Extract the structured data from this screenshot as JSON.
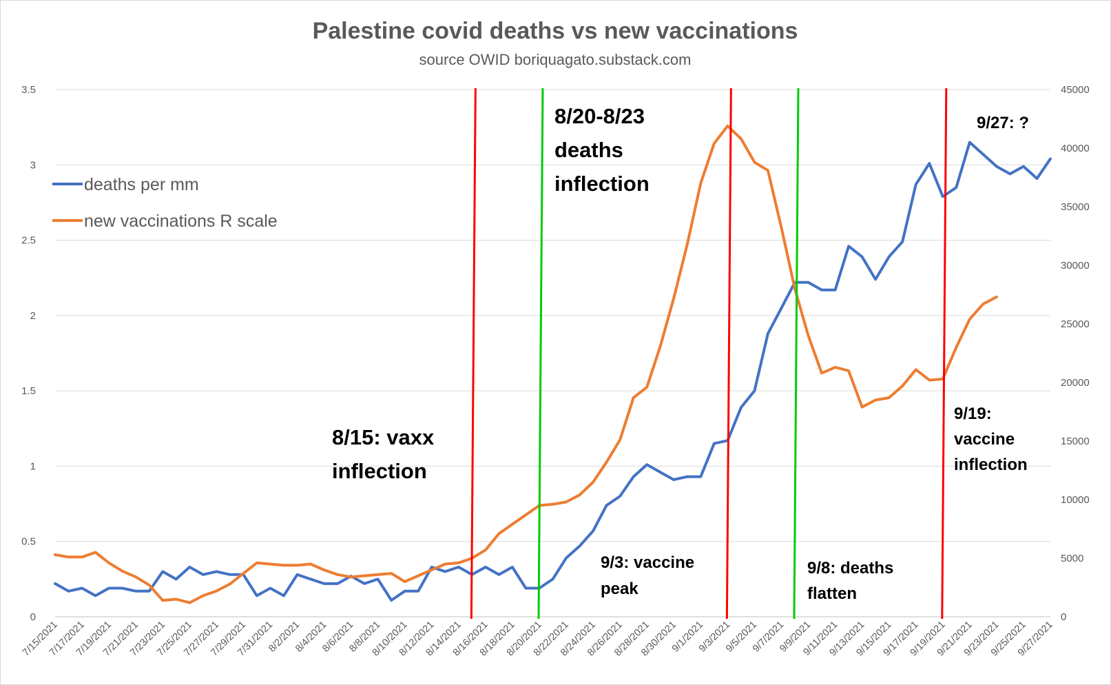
{
  "chart_data": {
    "type": "line",
    "title": "Palestine covid deaths vs new vaccinations",
    "subtitle": "source OWID boriquagato.substack.com",
    "x": [
      "7/15/2021",
      "7/16/2021",
      "7/17/2021",
      "7/18/2021",
      "7/19/2021",
      "7/20/2021",
      "7/21/2021",
      "7/22/2021",
      "7/23/2021",
      "7/24/2021",
      "7/25/2021",
      "7/26/2021",
      "7/27/2021",
      "7/28/2021",
      "7/29/2021",
      "7/30/2021",
      "7/31/2021",
      "8/1/2021",
      "8/2/2021",
      "8/3/2021",
      "8/4/2021",
      "8/5/2021",
      "8/6/2021",
      "8/7/2021",
      "8/8/2021",
      "8/9/2021",
      "8/10/2021",
      "8/11/2021",
      "8/12/2021",
      "8/13/2021",
      "8/14/2021",
      "8/15/2021",
      "8/16/2021",
      "8/17/2021",
      "8/18/2021",
      "8/19/2021",
      "8/20/2021",
      "8/21/2021",
      "8/22/2021",
      "8/23/2021",
      "8/24/2021",
      "8/25/2021",
      "8/26/2021",
      "8/27/2021",
      "8/28/2021",
      "8/29/2021",
      "8/30/2021",
      "8/31/2021",
      "9/1/2021",
      "9/2/2021",
      "9/3/2021",
      "9/4/2021",
      "9/5/2021",
      "9/6/2021",
      "9/7/2021",
      "9/8/2021",
      "9/9/2021",
      "9/10/2021",
      "9/11/2021",
      "9/12/2021",
      "9/13/2021",
      "9/14/2021",
      "9/15/2021",
      "9/16/2021",
      "9/17/2021",
      "9/18/2021",
      "9/19/2021",
      "9/20/2021",
      "9/21/2021",
      "9/22/2021",
      "9/23/2021",
      "9/24/2021",
      "9/25/2021",
      "9/26/2021",
      "9/27/2021"
    ],
    "x_tick_labels": [
      "7/15/2021",
      "7/17/2021",
      "7/19/2021",
      "7/21/2021",
      "7/23/2021",
      "7/25/2021",
      "7/27/2021",
      "7/29/2021",
      "7/31/2021",
      "8/2/2021",
      "8/4/2021",
      "8/6/2021",
      "8/8/2021",
      "8/10/2021",
      "8/12/2021",
      "8/14/2021",
      "8/16/2021",
      "8/18/2021",
      "8/20/2021",
      "8/22/2021",
      "8/24/2021",
      "8/26/2021",
      "8/28/2021",
      "8/30/2021",
      "9/1/2021",
      "9/3/2021",
      "9/5/2021",
      "9/7/2021",
      "9/9/2021",
      "9/11/2021",
      "9/13/2021",
      "9/15/2021",
      "9/17/2021",
      "9/19/2021",
      "9/21/2021",
      "9/23/2021",
      "9/25/2021",
      "9/27/2021"
    ],
    "y_left": {
      "ylim": [
        0,
        3.5
      ],
      "ticks": [
        "0",
        "0.5",
        "1",
        "1.5",
        "2",
        "2.5",
        "3",
        "3.5"
      ]
    },
    "y_right": {
      "ylim": [
        0,
        45000
      ],
      "ticks": [
        "0",
        "5000",
        "10000",
        "15000",
        "20000",
        "25000",
        "30000",
        "35000",
        "40000",
        "45000"
      ]
    },
    "grid": true,
    "legend_position": "top-left",
    "series": [
      {
        "name": "deaths per mm",
        "color": "#4472c4",
        "axis": "left",
        "values": [
          0.22,
          0.17,
          0.19,
          0.14,
          0.19,
          0.19,
          0.17,
          0.17,
          0.3,
          0.25,
          0.33,
          0.28,
          0.3,
          0.28,
          0.28,
          0.14,
          0.19,
          0.14,
          0.28,
          0.25,
          0.22,
          0.22,
          0.27,
          0.22,
          0.25,
          0.11,
          0.17,
          0.17,
          0.33,
          0.3,
          0.33,
          0.28,
          0.33,
          0.28,
          0.33,
          0.19,
          0.19,
          0.25,
          0.39,
          0.47,
          0.57,
          0.74,
          0.8,
          0.93,
          1.01,
          0.96,
          0.91,
          0.93,
          0.93,
          1.15,
          1.17,
          1.39,
          1.5,
          1.88,
          2.05,
          2.22,
          2.22,
          2.17,
          2.17,
          2.46,
          2.39,
          2.24,
          2.39,
          2.49,
          2.87,
          3.01,
          2.79,
          2.85,
          3.15,
          3.07,
          2.99,
          2.94,
          2.99,
          2.91,
          3.04
        ]
      },
      {
        "name": "new vaccinations R scale",
        "color": "#ed7d31",
        "axis": "right",
        "values": [
          5300,
          5100,
          5100,
          5500,
          4600,
          3900,
          3400,
          2700,
          1400,
          1500,
          1200,
          1800,
          2200,
          2800,
          3700,
          4600,
          4500,
          4400,
          4400,
          4500,
          4000,
          3600,
          3400,
          3500,
          3600,
          3700,
          3000,
          3500,
          4000,
          4500,
          4600,
          5000,
          5700,
          7100,
          7900,
          8700,
          9500,
          9600,
          9800,
          10400,
          11500,
          13200,
          15100,
          18700,
          19600,
          23100,
          27200,
          31800,
          37000,
          40400,
          41900,
          40800,
          38800,
          38100,
          33200,
          28000,
          24000,
          20800,
          21300,
          21000,
          17900,
          18500,
          18700,
          19700,
          21100,
          20200,
          20300,
          23000,
          25400,
          26700,
          27300,
          null,
          null,
          null,
          null
        ]
      }
    ],
    "vertical_lines": [
      {
        "color": "#ff0000",
        "at": "8/15/2021"
      },
      {
        "color": "#00cc00",
        "at": "8/20/2021"
      },
      {
        "color": "#ff0000",
        "at": "9/3/2021"
      },
      {
        "color": "#00cc00",
        "at": "9/8/2021"
      },
      {
        "color": "#ff0000",
        "at": "9/19/2021"
      }
    ],
    "annotations": {
      "vaxx_inflection": [
        "8/15: vaxx",
        "inflection"
      ],
      "deaths_inflection": [
        "8/20-8/23",
        "deaths",
        "inflection"
      ],
      "vaccine_peak": [
        "9/3: vaccine",
        "peak"
      ],
      "deaths_flatten": [
        "9/8: deaths",
        "flatten"
      ],
      "vaccine_inflection": [
        "9/19:",
        "vaccine",
        "inflection"
      ],
      "question": [
        "9/27: ?"
      ]
    }
  }
}
